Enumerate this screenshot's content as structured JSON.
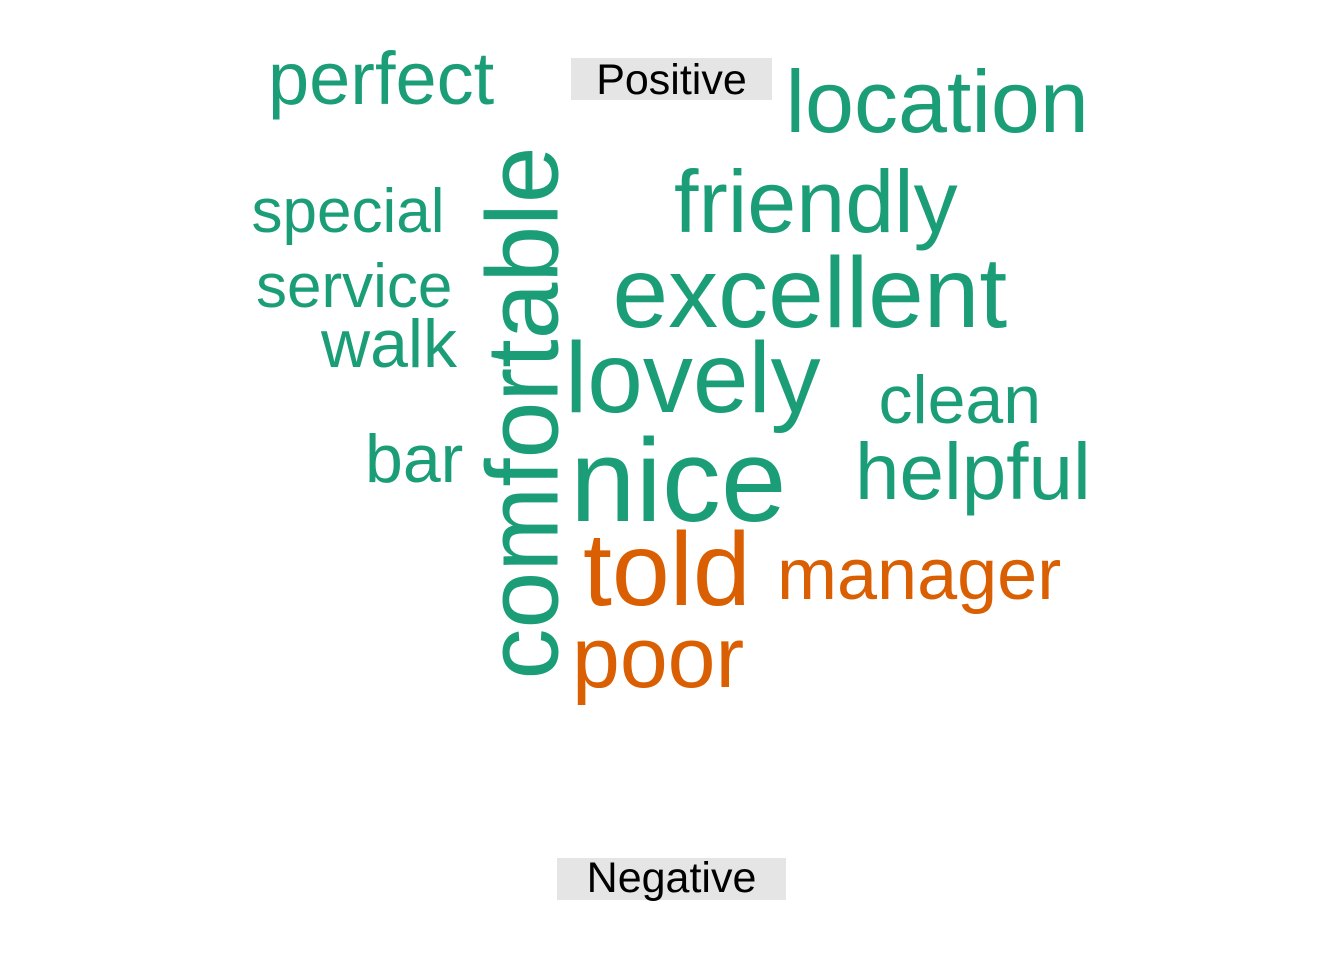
{
  "chart_data": {
    "type": "comparison-wordcloud",
    "groups": [
      {
        "name": "Positive",
        "color": "#1b9e77"
      },
      {
        "name": "Negative",
        "color": "#d95f02"
      }
    ],
    "words": [
      {
        "text": "nice",
        "group": "Positive"
      },
      {
        "text": "comfortable",
        "group": "Positive"
      },
      {
        "text": "excellent",
        "group": "Positive"
      },
      {
        "text": "lovely",
        "group": "Positive"
      },
      {
        "text": "friendly",
        "group": "Positive"
      },
      {
        "text": "location",
        "group": "Positive"
      },
      {
        "text": "helpful",
        "group": "Positive"
      },
      {
        "text": "perfect",
        "group": "Positive"
      },
      {
        "text": "clean",
        "group": "Positive"
      },
      {
        "text": "walk",
        "group": "Positive"
      },
      {
        "text": "bar",
        "group": "Positive"
      },
      {
        "text": "special",
        "group": "Positive"
      },
      {
        "text": "service",
        "group": "Positive"
      },
      {
        "text": "told",
        "group": "Negative"
      },
      {
        "text": "poor",
        "group": "Negative"
      },
      {
        "text": "manager",
        "group": "Negative"
      }
    ]
  }
}
